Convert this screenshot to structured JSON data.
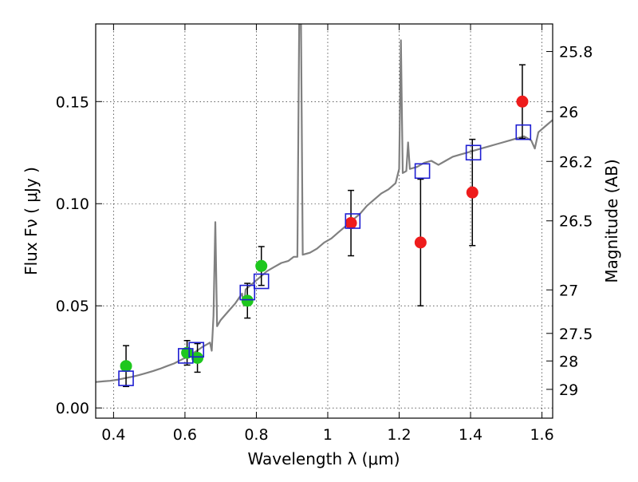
{
  "chart_data": {
    "type": "scatter",
    "xlabel": "Wavelength  λ (μm)",
    "ylabel": "Flux  Fν  ( μJy )",
    "ylabel_right": "Magnitude (AB)",
    "xlim": [
      0.35,
      1.63
    ],
    "ylim": [
      -0.005,
      0.188
    ],
    "grid": true,
    "x_ticks": [
      0.4,
      0.6,
      0.8,
      1.0,
      1.2,
      1.4,
      1.6
    ],
    "x_tick_labels": [
      "0.4",
      "0.6",
      "0.8",
      "1",
      "1.2",
      "1.4",
      "1.6"
    ],
    "y_ticks": [
      0.0,
      0.05,
      0.1,
      0.15
    ],
    "y_tick_labels": [
      "0.00",
      "0.05",
      "0.10",
      "0.15"
    ],
    "right_ticks": [
      {
        "label": "25.8",
        "flux": 0.1745
      },
      {
        "label": "26",
        "flux": 0.1451
      },
      {
        "label": "26.2",
        "flux": 0.1207
      },
      {
        "label": "26.5",
        "flux": 0.0916
      },
      {
        "label": "27",
        "flux": 0.0578
      },
      {
        "label": "27.5",
        "flux": 0.0365
      },
      {
        "label": "28",
        "flux": 0.023
      },
      {
        "label": "29",
        "flux": 0.0091
      }
    ],
    "model_spectrum": {
      "color": "#808080",
      "points": [
        [
          0.35,
          0.0127
        ],
        [
          0.37,
          0.013
        ],
        [
          0.39,
          0.0133
        ],
        [
          0.41,
          0.0138
        ],
        [
          0.43,
          0.0145
        ],
        [
          0.45,
          0.0152
        ],
        [
          0.47,
          0.016
        ],
        [
          0.49,
          0.017
        ],
        [
          0.51,
          0.018
        ],
        [
          0.53,
          0.0192
        ],
        [
          0.55,
          0.0205
        ],
        [
          0.57,
          0.0218
        ],
        [
          0.59,
          0.0236
        ],
        [
          0.61,
          0.0255
        ],
        [
          0.63,
          0.0276
        ],
        [
          0.65,
          0.03
        ],
        [
          0.66,
          0.031
        ],
        [
          0.67,
          0.032
        ],
        [
          0.675,
          0.028
        ],
        [
          0.68,
          0.045
        ],
        [
          0.685,
          0.091
        ],
        [
          0.69,
          0.04
        ],
        [
          0.7,
          0.043
        ],
        [
          0.72,
          0.047
        ],
        [
          0.74,
          0.051
        ],
        [
          0.76,
          0.056
        ],
        [
          0.765,
          0.05
        ],
        [
          0.77,
          0.058
        ],
        [
          0.79,
          0.061
        ],
        [
          0.81,
          0.064
        ],
        [
          0.83,
          0.067
        ],
        [
          0.85,
          0.069
        ],
        [
          0.87,
          0.071
        ],
        [
          0.89,
          0.072
        ],
        [
          0.905,
          0.074
        ],
        [
          0.915,
          0.074
        ],
        [
          0.92,
          0.19
        ],
        [
          0.925,
          0.19
        ],
        [
          0.93,
          0.075
        ],
        [
          0.95,
          0.076
        ],
        [
          0.97,
          0.078
        ],
        [
          0.99,
          0.081
        ],
        [
          1.01,
          0.083
        ],
        [
          1.03,
          0.086
        ],
        [
          1.05,
          0.089
        ],
        [
          1.07,
          0.092
        ],
        [
          1.09,
          0.095
        ],
        [
          1.11,
          0.099
        ],
        [
          1.13,
          0.102
        ],
        [
          1.15,
          0.105
        ],
        [
          1.17,
          0.107
        ],
        [
          1.19,
          0.11
        ],
        [
          1.2,
          0.117
        ],
        [
          1.205,
          0.18
        ],
        [
          1.21,
          0.115
        ],
        [
          1.22,
          0.116
        ],
        [
          1.225,
          0.13
        ],
        [
          1.23,
          0.117
        ],
        [
          1.25,
          0.118
        ],
        [
          1.27,
          0.12
        ],
        [
          1.29,
          0.121
        ],
        [
          1.31,
          0.119
        ],
        [
          1.33,
          0.121
        ],
        [
          1.35,
          0.123
        ],
        [
          1.37,
          0.124
        ],
        [
          1.39,
          0.125
        ],
        [
          1.41,
          0.126
        ],
        [
          1.43,
          0.127
        ],
        [
          1.45,
          0.128
        ],
        [
          1.47,
          0.129
        ],
        [
          1.49,
          0.13
        ],
        [
          1.51,
          0.131
        ],
        [
          1.53,
          0.132
        ],
        [
          1.55,
          0.133
        ],
        [
          1.57,
          0.131
        ],
        [
          1.58,
          0.127
        ],
        [
          1.59,
          0.135
        ],
        [
          1.61,
          0.138
        ],
        [
          1.63,
          0.141
        ]
      ]
    },
    "series": [
      {
        "marker": "circle",
        "color": "#1ec71e",
        "points": [
          {
            "x": 0.435,
            "y": 0.0205,
            "err": 0.01
          },
          {
            "x": 0.606,
            "y": 0.027,
            "err": 0.006
          },
          {
            "x": 0.635,
            "y": 0.0245,
            "err": 0.007
          },
          {
            "x": 0.775,
            "y": 0.0525,
            "err": 0.0085
          },
          {
            "x": 0.814,
            "y": 0.0695,
            "err": 0.0095
          }
        ]
      },
      {
        "marker": "circle",
        "color": "#ee1c1c",
        "points": [
          {
            "x": 1.065,
            "y": 0.0905,
            "err": 0.016
          },
          {
            "x": 1.26,
            "y": 0.081,
            "err": 0.031
          },
          {
            "x": 1.405,
            "y": 0.1055,
            "err": 0.026
          },
          {
            "x": 1.545,
            "y": 0.15,
            "err": 0.018
          }
        ]
      },
      {
        "marker": "square",
        "color": "#1e1ed2",
        "points": [
          {
            "x": 0.435,
            "y": 0.0145
          },
          {
            "x": 0.602,
            "y": 0.0255
          },
          {
            "x": 0.632,
            "y": 0.0285
          },
          {
            "x": 0.775,
            "y": 0.0565
          },
          {
            "x": 0.814,
            "y": 0.062
          },
          {
            "x": 1.07,
            "y": 0.0915
          },
          {
            "x": 1.265,
            "y": 0.116
          },
          {
            "x": 1.408,
            "y": 0.125
          },
          {
            "x": 1.548,
            "y": 0.135
          }
        ]
      }
    ]
  }
}
